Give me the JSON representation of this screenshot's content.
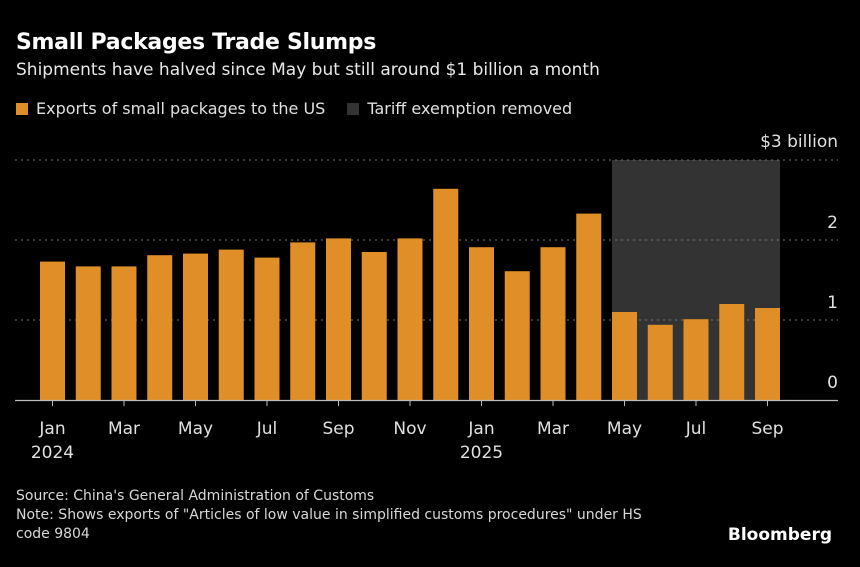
{
  "title": "Small Packages Trade Slumps",
  "subtitle": "Shipments have halved since May but still around $1 billion a month",
  "legend": [
    {
      "label": "Exports of small packages to the US",
      "color": "#e08e27"
    },
    {
      "label": "Tariff exemption removed",
      "color": "#333333"
    }
  ],
  "source": "Source: China's General Administration of Customs",
  "note": "Note: Shows exports of \"Articles of low value in simplified customs procedures\" under HS code 9804",
  "brand": "Bloomberg",
  "chart_data": {
    "type": "bar",
    "categories": [
      "Jan 2024",
      "Feb 2024",
      "Mar 2024",
      "Apr 2024",
      "May 2024",
      "Jun 2024",
      "Jul 2024",
      "Aug 2024",
      "Sep 2024",
      "Oct 2024",
      "Nov 2024",
      "Dec 2024",
      "Jan 2025",
      "Feb 2025",
      "Mar 2025",
      "Apr 2025",
      "May 2025",
      "Jun 2025",
      "Jul 2025",
      "Aug 2025",
      "Sep 2025"
    ],
    "series": [
      {
        "name": "Exports of small packages to the US",
        "values": [
          1.73,
          1.67,
          1.67,
          1.81,
          1.83,
          1.88,
          1.78,
          1.97,
          2.02,
          1.85,
          2.02,
          2.64,
          1.91,
          1.61,
          1.91,
          2.33,
          1.1,
          0.94,
          1.01,
          1.2,
          1.15
        ]
      }
    ],
    "shaded_range": {
      "label": "Tariff exemption removed",
      "from": "May 2025",
      "to": "Sep 2025"
    },
    "x_tick_labels": [
      {
        "category": "Jan 2024",
        "label": "Jan",
        "year": "2024"
      },
      {
        "category": "Mar 2024",
        "label": "Mar"
      },
      {
        "category": "May 2024",
        "label": "May"
      },
      {
        "category": "Jul 2024",
        "label": "Jul"
      },
      {
        "category": "Sep 2024",
        "label": "Sep"
      },
      {
        "category": "Nov 2024",
        "label": "Nov"
      },
      {
        "category": "Jan 2025",
        "label": "Jan",
        "year": "2025"
      },
      {
        "category": "Mar 2025",
        "label": "Mar"
      },
      {
        "category": "May 2025",
        "label": "May"
      },
      {
        "category": "Jul 2025",
        "label": "Jul"
      },
      {
        "category": "Sep 2025",
        "label": "Sep"
      }
    ],
    "y_ticks": [
      {
        "value": 0,
        "label": "0"
      },
      {
        "value": 1,
        "label": "1"
      },
      {
        "value": 2,
        "label": "2"
      },
      {
        "value": 3,
        "label": "$3 billion"
      }
    ],
    "ylim": [
      0,
      3
    ],
    "grid": true,
    "legend_position": "top-left",
    "colors": {
      "bar": "#e08e27",
      "shade": "#333333",
      "grid": "#777777",
      "background": "#000000"
    }
  }
}
